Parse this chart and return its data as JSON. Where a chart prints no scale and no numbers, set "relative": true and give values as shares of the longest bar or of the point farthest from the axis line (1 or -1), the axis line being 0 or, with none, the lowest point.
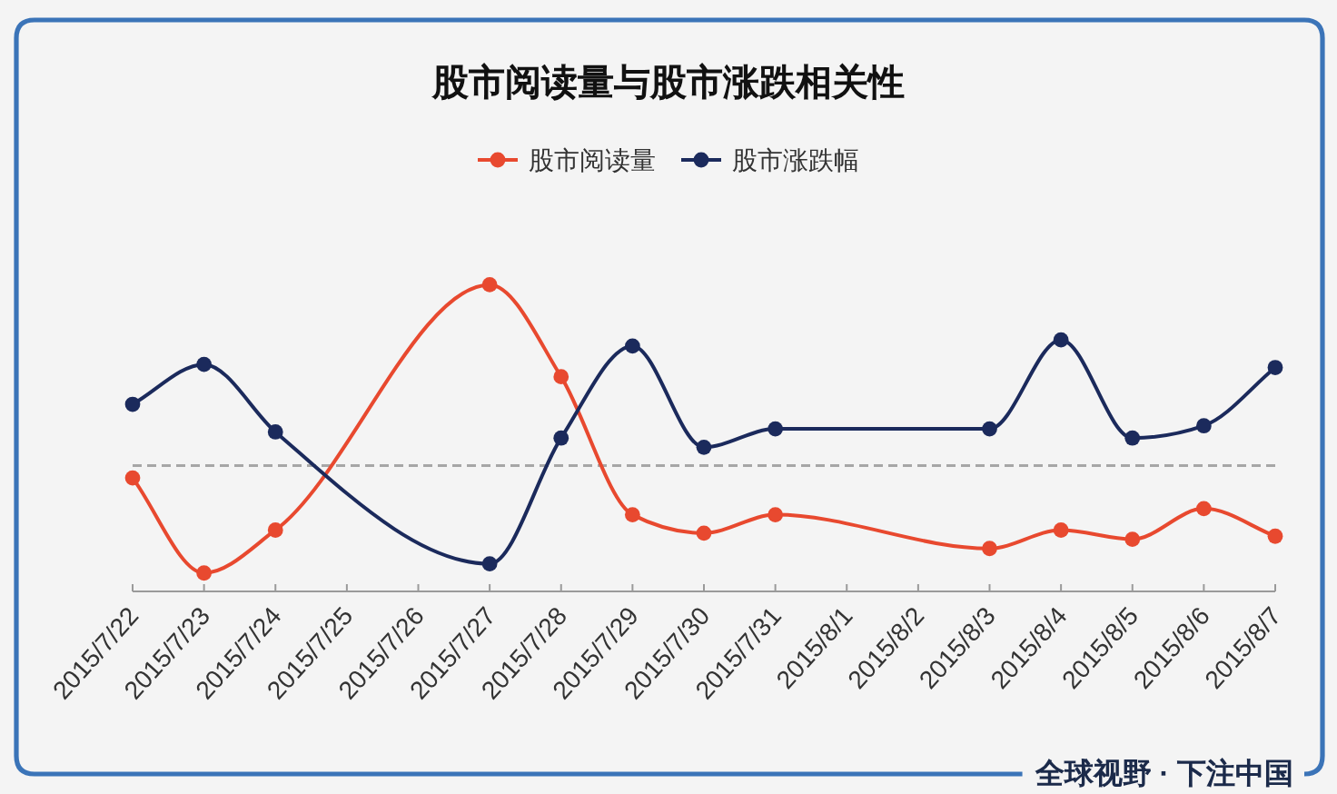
{
  "chart_data": {
    "type": "line",
    "title": "股市阅读量与股市涨跌相关性",
    "relative": true,
    "x": [
      "2015-07-22",
      "2015-07-23",
      "2015-07-24",
      "2015-07-27",
      "2015-07-28",
      "2015-07-29",
      "2015-07-30",
      "2015-07-31",
      "2015-08-03",
      "2015-08-04",
      "2015-08-05",
      "2015-08-06",
      "2015-08-07"
    ],
    "xlim": [
      "2015-07-22",
      "2015-08-07"
    ],
    "xticks": [
      {
        "value": "2015-07-22",
        "label": "2015/7/22"
      },
      {
        "value": "2015-07-23",
        "label": "2015/7/23"
      },
      {
        "value": "2015-07-24",
        "label": "2015/7/24"
      },
      {
        "value": "2015-07-25",
        "label": "2015/7/25"
      },
      {
        "value": "2015-07-26",
        "label": "2015/7/26"
      },
      {
        "value": "2015-07-27",
        "label": "2015/7/27"
      },
      {
        "value": "2015-07-28",
        "label": "2015/7/28"
      },
      {
        "value": "2015-07-29",
        "label": "2015/7/29"
      },
      {
        "value": "2015-07-30",
        "label": "2015/7/30"
      },
      {
        "value": "2015-07-31",
        "label": "2015/7/31"
      },
      {
        "value": "2015-08-01",
        "label": "2015/8/1"
      },
      {
        "value": "2015-08-02",
        "label": "2015/8/2"
      },
      {
        "value": "2015-08-03",
        "label": "2015/8/3"
      },
      {
        "value": "2015-08-04",
        "label": "2015/8/4"
      },
      {
        "value": "2015-08-05",
        "label": "2015/8/5"
      },
      {
        "value": "2015-08-06",
        "label": "2015/8/6"
      },
      {
        "value": "2015-08-07",
        "label": "2015/8/7"
      }
    ],
    "series": [
      {
        "name": "股市阅读量",
        "color": "#e8492f",
        "values": [
          0.37,
          0.06,
          0.2,
          1,
          0.7,
          0.25,
          0.19,
          0.25,
          0.14,
          0.2,
          0.17,
          0.27,
          0.18
        ]
      },
      {
        "name": "股市涨跌幅",
        "color": "#1b2a5c",
        "values": [
          0.61,
          0.74,
          0.52,
          0.09,
          0.5,
          0.8,
          0.47,
          0.53,
          0.53,
          0.82,
          0.5,
          0.54,
          0.73
        ]
      }
    ],
    "ref_lines": [
      {
        "axis": "y",
        "value": 0.41,
        "color": "#a6a6a6",
        "line_style": "dashed"
      }
    ],
    "legend": "top",
    "marker": "circle",
    "line_style": "solid",
    "annotations": [
      "全球视野 · 下注中国"
    ]
  }
}
